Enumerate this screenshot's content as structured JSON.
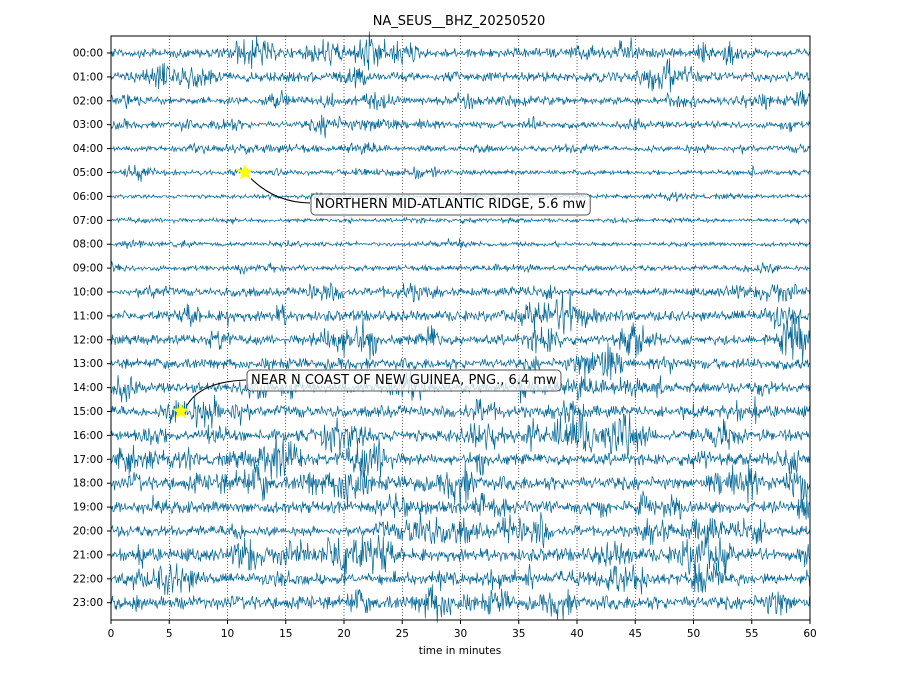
{
  "chart_data": {
    "type": "line",
    "title": "NA_SEUS__BHZ_20250520",
    "xlabel": "time in minutes",
    "ylabel": "",
    "xlim": [
      0,
      60
    ],
    "x_ticks": [
      0,
      5,
      10,
      15,
      20,
      25,
      30,
      35,
      40,
      45,
      50,
      55,
      60
    ],
    "grid": "vertical dotted lines every 5 minutes",
    "trace_color": "#006699",
    "hours": [
      "00:00",
      "01:00",
      "02:00",
      "03:00",
      "04:00",
      "05:00",
      "06:00",
      "07:00",
      "08:00",
      "09:00",
      "10:00",
      "11:00",
      "12:00",
      "13:00",
      "14:00",
      "15:00",
      "16:00",
      "17:00",
      "18:00",
      "19:00",
      "20:00",
      "21:00",
      "22:00",
      "23:00"
    ],
    "noise_level": [
      0.45,
      0.5,
      0.35,
      0.3,
      0.18,
      0.18,
      0.1,
      0.08,
      0.12,
      0.22,
      0.35,
      0.55,
      0.5,
      0.55,
      0.5,
      0.6,
      0.6,
      0.6,
      0.75,
      0.6,
      0.55,
      0.7,
      0.55,
      0.75
    ],
    "events": [
      {
        "hour_index": 5,
        "minute": 11.5,
        "label": "NORTHERN MID-ATLANTIC RIDGE, 5.6 mw",
        "marker": "star",
        "marker_color": "#ffff00"
      },
      {
        "hour_index": 15,
        "minute": 6.0,
        "label": "NEAR N COAST OF NEW GUINEA, PNG., 6.4 mw",
        "marker": "star",
        "marker_color": "#ffff00"
      }
    ]
  }
}
